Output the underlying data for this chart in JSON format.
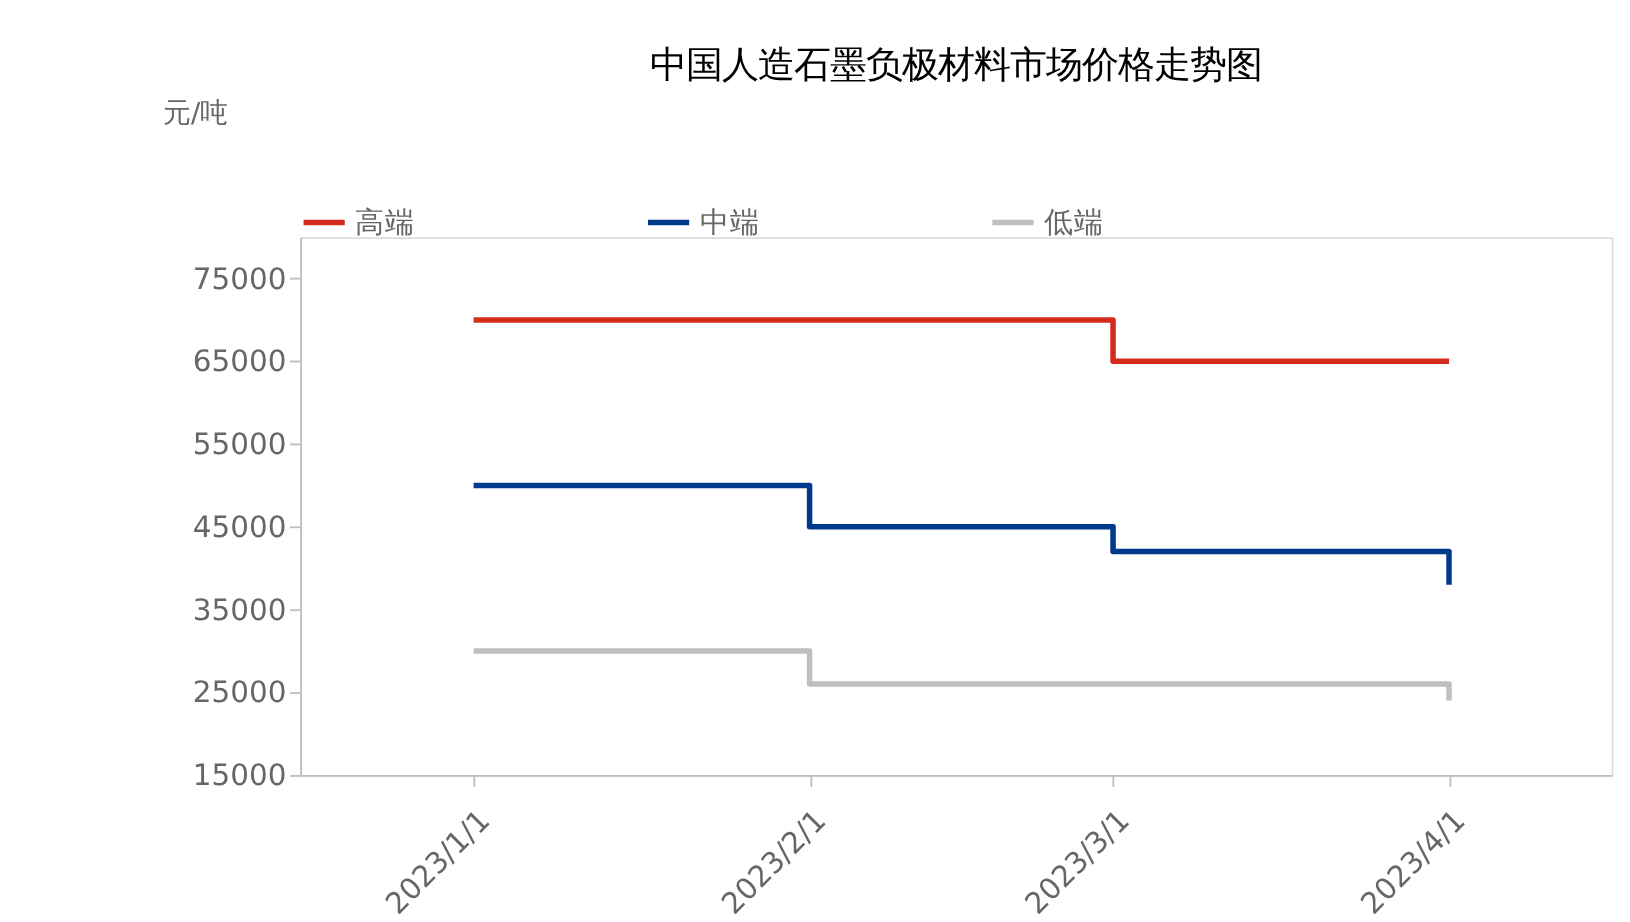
{
  "chart_data": {
    "type": "step",
    "title": "中国人造石墨负极材料市场价格走势图",
    "ylabel": "元/吨",
    "legend": "top",
    "xlim": [
      "2022-12-16",
      "2023-04-16"
    ],
    "xticks": [
      {
        "value": "2023-01-01",
        "label": "2023/1/1"
      },
      {
        "value": "2023-02-01",
        "label": "2023/2/1"
      },
      {
        "value": "2023-03-01",
        "label": "2023/3/1"
      },
      {
        "value": "2023-04-01",
        "label": "2023/4/1"
      }
    ],
    "ylim": [
      15000,
      80000
    ],
    "yticks": [
      15000,
      25000,
      35000,
      45000,
      55000,
      65000,
      75000
    ],
    "series": [
      {
        "name": "高端",
        "color": "#d52b1e",
        "x": [
          "2023-01-01",
          "2023-03-01",
          "2023-04-01"
        ],
        "values": [
          70000,
          65000,
          65000
        ]
      },
      {
        "name": "中端",
        "color": "#003a8c",
        "x": [
          "2023-01-01",
          "2023-02-01",
          "2023-03-01",
          "2023-04-01"
        ],
        "values": [
          50000,
          45000,
          42000,
          38000
        ]
      },
      {
        "name": "低端",
        "color": "#bfbfbf",
        "x": [
          "2023-01-01",
          "2023-02-01",
          "2023-04-01"
        ],
        "values": [
          30000,
          26000,
          24000
        ]
      }
    ]
  }
}
